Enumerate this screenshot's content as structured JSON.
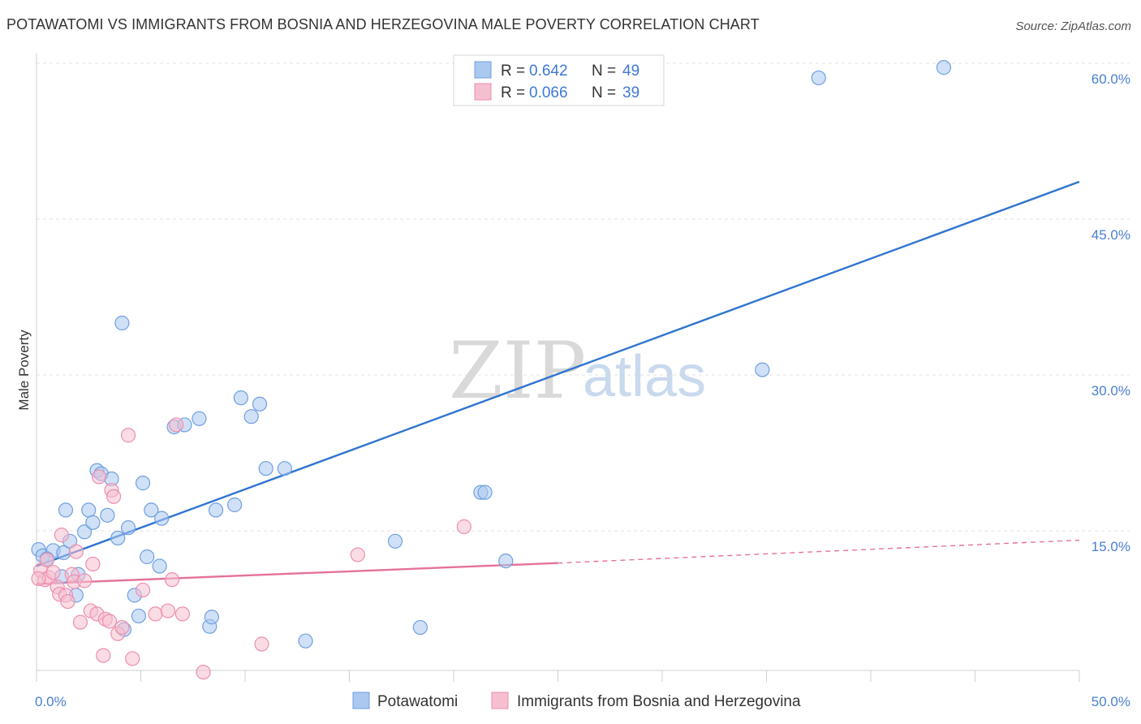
{
  "title": "POTAWATOMI VS IMMIGRANTS FROM BOSNIA AND HERZEGOVINA MALE POVERTY CORRELATION CHART",
  "source": "Source: ZipAtlas.com",
  "watermark": {
    "zip": "ZIP",
    "atlas": "atlas"
  },
  "colors": {
    "blue_fill": "#aac8f0",
    "blue_stroke": "#6f9fe0",
    "blue_line": "#2f74d0",
    "pink_fill": "#f6bfd0",
    "pink_stroke": "#ec8fae",
    "pink_line": "#e5719a",
    "grid": "#e3e3e3",
    "axis_text": "#4a7fd0"
  },
  "legend": {
    "rows": [
      {
        "r_label": "R =",
        "r_value": "0.642",
        "n_label": "N =",
        "n_value": "49"
      },
      {
        "r_label": "R =",
        "r_value": "0.066",
        "n_label": "N =",
        "n_value": "39"
      }
    ]
  },
  "bottom_legend": [
    "Potawatomi",
    "Immigrants from Bosnia and Herzegovina"
  ],
  "chart_data": {
    "type": "scatter",
    "title": "POTAWATOMI VS IMMIGRANTS FROM BOSNIA AND HERZEGOVINA MALE POVERTY CORRELATION CHART",
    "xlabel": "",
    "ylabel": "Male Poverty",
    "xlim": [
      0,
      50
    ],
    "ylim": [
      0,
      62
    ],
    "x_tick_labels": [
      "0.0%",
      "50.0%"
    ],
    "y_ticks": [
      15,
      30,
      45,
      60
    ],
    "y_tick_labels": [
      "15.0%",
      "30.0%",
      "45.0%",
      "60.0%"
    ],
    "grid": true,
    "legend_position": "top-center",
    "series": [
      {
        "name": "Potawatomi",
        "R": 0.642,
        "N": 49,
        "trend": {
          "x": [
            0,
            50
          ],
          "y": [
            11.6,
            48.6
          ],
          "style": "solid"
        },
        "points": [
          [
            0.1,
            13.2
          ],
          [
            0.3,
            12.6
          ],
          [
            0.8,
            13.1
          ],
          [
            1.2,
            10.6
          ],
          [
            1.3,
            12.9
          ],
          [
            1.4,
            17.0
          ],
          [
            1.6,
            14.0
          ],
          [
            1.9,
            8.8
          ],
          [
            2.0,
            10.8
          ],
          [
            2.3,
            14.9
          ],
          [
            2.5,
            17.0
          ],
          [
            2.7,
            15.8
          ],
          [
            2.9,
            20.8
          ],
          [
            3.1,
            20.5
          ],
          [
            3.4,
            16.5
          ],
          [
            3.6,
            20.0
          ],
          [
            3.9,
            14.3
          ],
          [
            4.1,
            35.0
          ],
          [
            4.4,
            15.3
          ],
          [
            4.7,
            8.8
          ],
          [
            4.9,
            6.8
          ],
          [
            5.1,
            19.6
          ],
          [
            5.3,
            12.5
          ],
          [
            5.5,
            17.0
          ],
          [
            5.9,
            11.6
          ],
          [
            6.0,
            16.2
          ],
          [
            6.6,
            25.0
          ],
          [
            7.1,
            25.2
          ],
          [
            7.8,
            25.8
          ],
          [
            8.3,
            5.8
          ],
          [
            8.4,
            6.7
          ],
          [
            8.6,
            17.0
          ],
          [
            9.5,
            17.5
          ],
          [
            9.8,
            27.8
          ],
          [
            10.3,
            26.0
          ],
          [
            10.7,
            27.2
          ],
          [
            11.0,
            21.0
          ],
          [
            11.9,
            21.0
          ],
          [
            4.2,
            5.5
          ],
          [
            12.9,
            4.4
          ],
          [
            17.2,
            14.0
          ],
          [
            18.4,
            5.7
          ],
          [
            21.3,
            18.7
          ],
          [
            21.5,
            18.7
          ],
          [
            22.5,
            12.1
          ],
          [
            34.8,
            30.5
          ],
          [
            37.5,
            58.6
          ],
          [
            43.5,
            59.6
          ],
          [
            0.5,
            12.3
          ]
        ]
      },
      {
        "name": "Immigrants from Bosnia and Herzegovina",
        "R": 0.066,
        "N": 39,
        "trend": {
          "x": [
            0,
            25
          ],
          "y": [
            9.9,
            11.9
          ],
          "style": "solid"
        },
        "trend_extension": {
          "x": [
            25,
            50
          ],
          "y": [
            11.9,
            14.1
          ],
          "style": "dashed"
        },
        "points": [
          [
            0.2,
            11.2
          ],
          [
            0.4,
            10.3
          ],
          [
            0.5,
            12.2
          ],
          [
            0.6,
            10.5
          ],
          [
            0.8,
            11.0
          ],
          [
            1.0,
            9.6
          ],
          [
            1.1,
            8.9
          ],
          [
            1.2,
            14.6
          ],
          [
            1.4,
            8.8
          ],
          [
            1.5,
            8.2
          ],
          [
            1.7,
            10.8
          ],
          [
            1.8,
            10.1
          ],
          [
            1.9,
            13.0
          ],
          [
            2.1,
            6.2
          ],
          [
            2.3,
            10.2
          ],
          [
            2.6,
            7.3
          ],
          [
            2.7,
            11.8
          ],
          [
            2.9,
            7.0
          ],
          [
            3.0,
            20.2
          ],
          [
            3.2,
            3.0
          ],
          [
            3.3,
            6.5
          ],
          [
            3.5,
            6.3
          ],
          [
            3.6,
            18.9
          ],
          [
            3.7,
            18.3
          ],
          [
            3.9,
            5.1
          ],
          [
            4.1,
            5.7
          ],
          [
            4.4,
            24.2
          ],
          [
            4.6,
            2.7
          ],
          [
            5.1,
            9.3
          ],
          [
            5.7,
            7.0
          ],
          [
            6.3,
            7.3
          ],
          [
            6.5,
            10.3
          ],
          [
            6.7,
            25.2
          ],
          [
            7.0,
            7.0
          ],
          [
            8.0,
            1.4
          ],
          [
            10.8,
            4.1
          ],
          [
            15.4,
            12.7
          ],
          [
            20.5,
            15.4
          ],
          [
            0.1,
            10.4
          ]
        ]
      }
    ]
  }
}
